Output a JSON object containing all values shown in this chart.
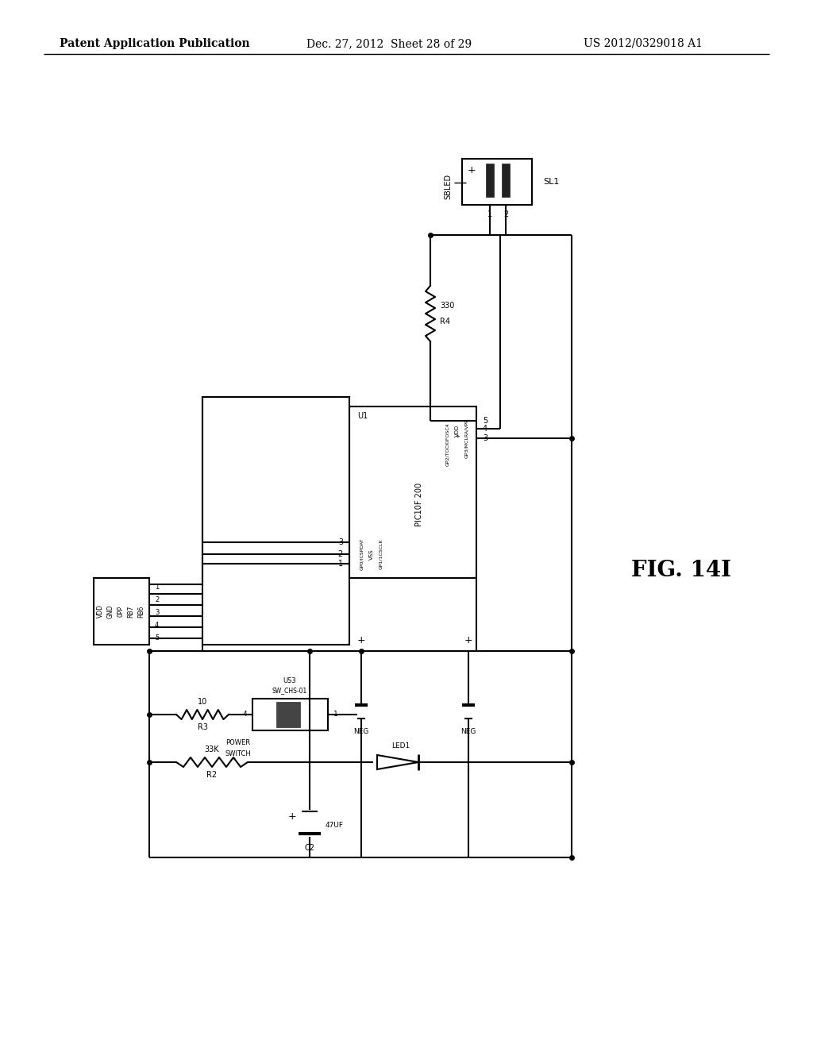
{
  "bg_color": "#ffffff",
  "header_left": "Patent Application Publication",
  "header_center": "Dec. 27, 2012  Sheet 28 of 29",
  "header_right": "US 2012/0329018 A1",
  "fig_label": "FIG. 14I"
}
